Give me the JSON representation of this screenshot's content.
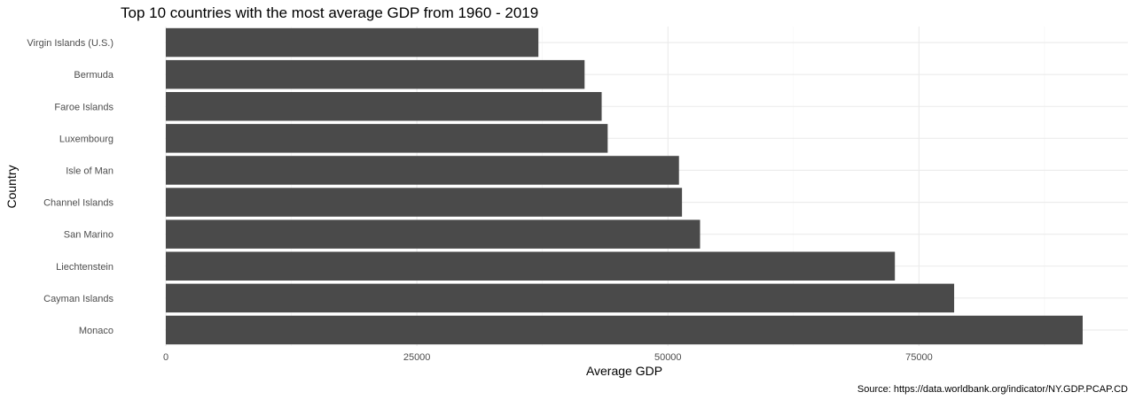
{
  "chart_data": {
    "type": "bar",
    "orientation": "horizontal",
    "title": "Top 10 countries with the most average GDP from 1960 - 2019",
    "xlabel": "Average GDP",
    "ylabel": "Country",
    "caption": "Source: https://data.worldbank.org/indicator/NY.GDP.PCAP.CD",
    "categories": [
      "Virgin Islands (U.S.)",
      "Bermuda",
      "Faroe Islands",
      "Luxembourg",
      "Isle of Man",
      "Channel Islands",
      "San Marino",
      "Liechtenstein",
      "Cayman Islands",
      "Monaco"
    ],
    "values": [
      37100,
      41700,
      43400,
      44000,
      51100,
      51400,
      53200,
      72600,
      78500,
      91300
    ],
    "xlim": [
      0,
      91300
    ],
    "x_ticks": [
      0,
      25000,
      50000,
      75000
    ],
    "grid": true,
    "bar_color": "#4a4a4a",
    "legend": "none"
  }
}
